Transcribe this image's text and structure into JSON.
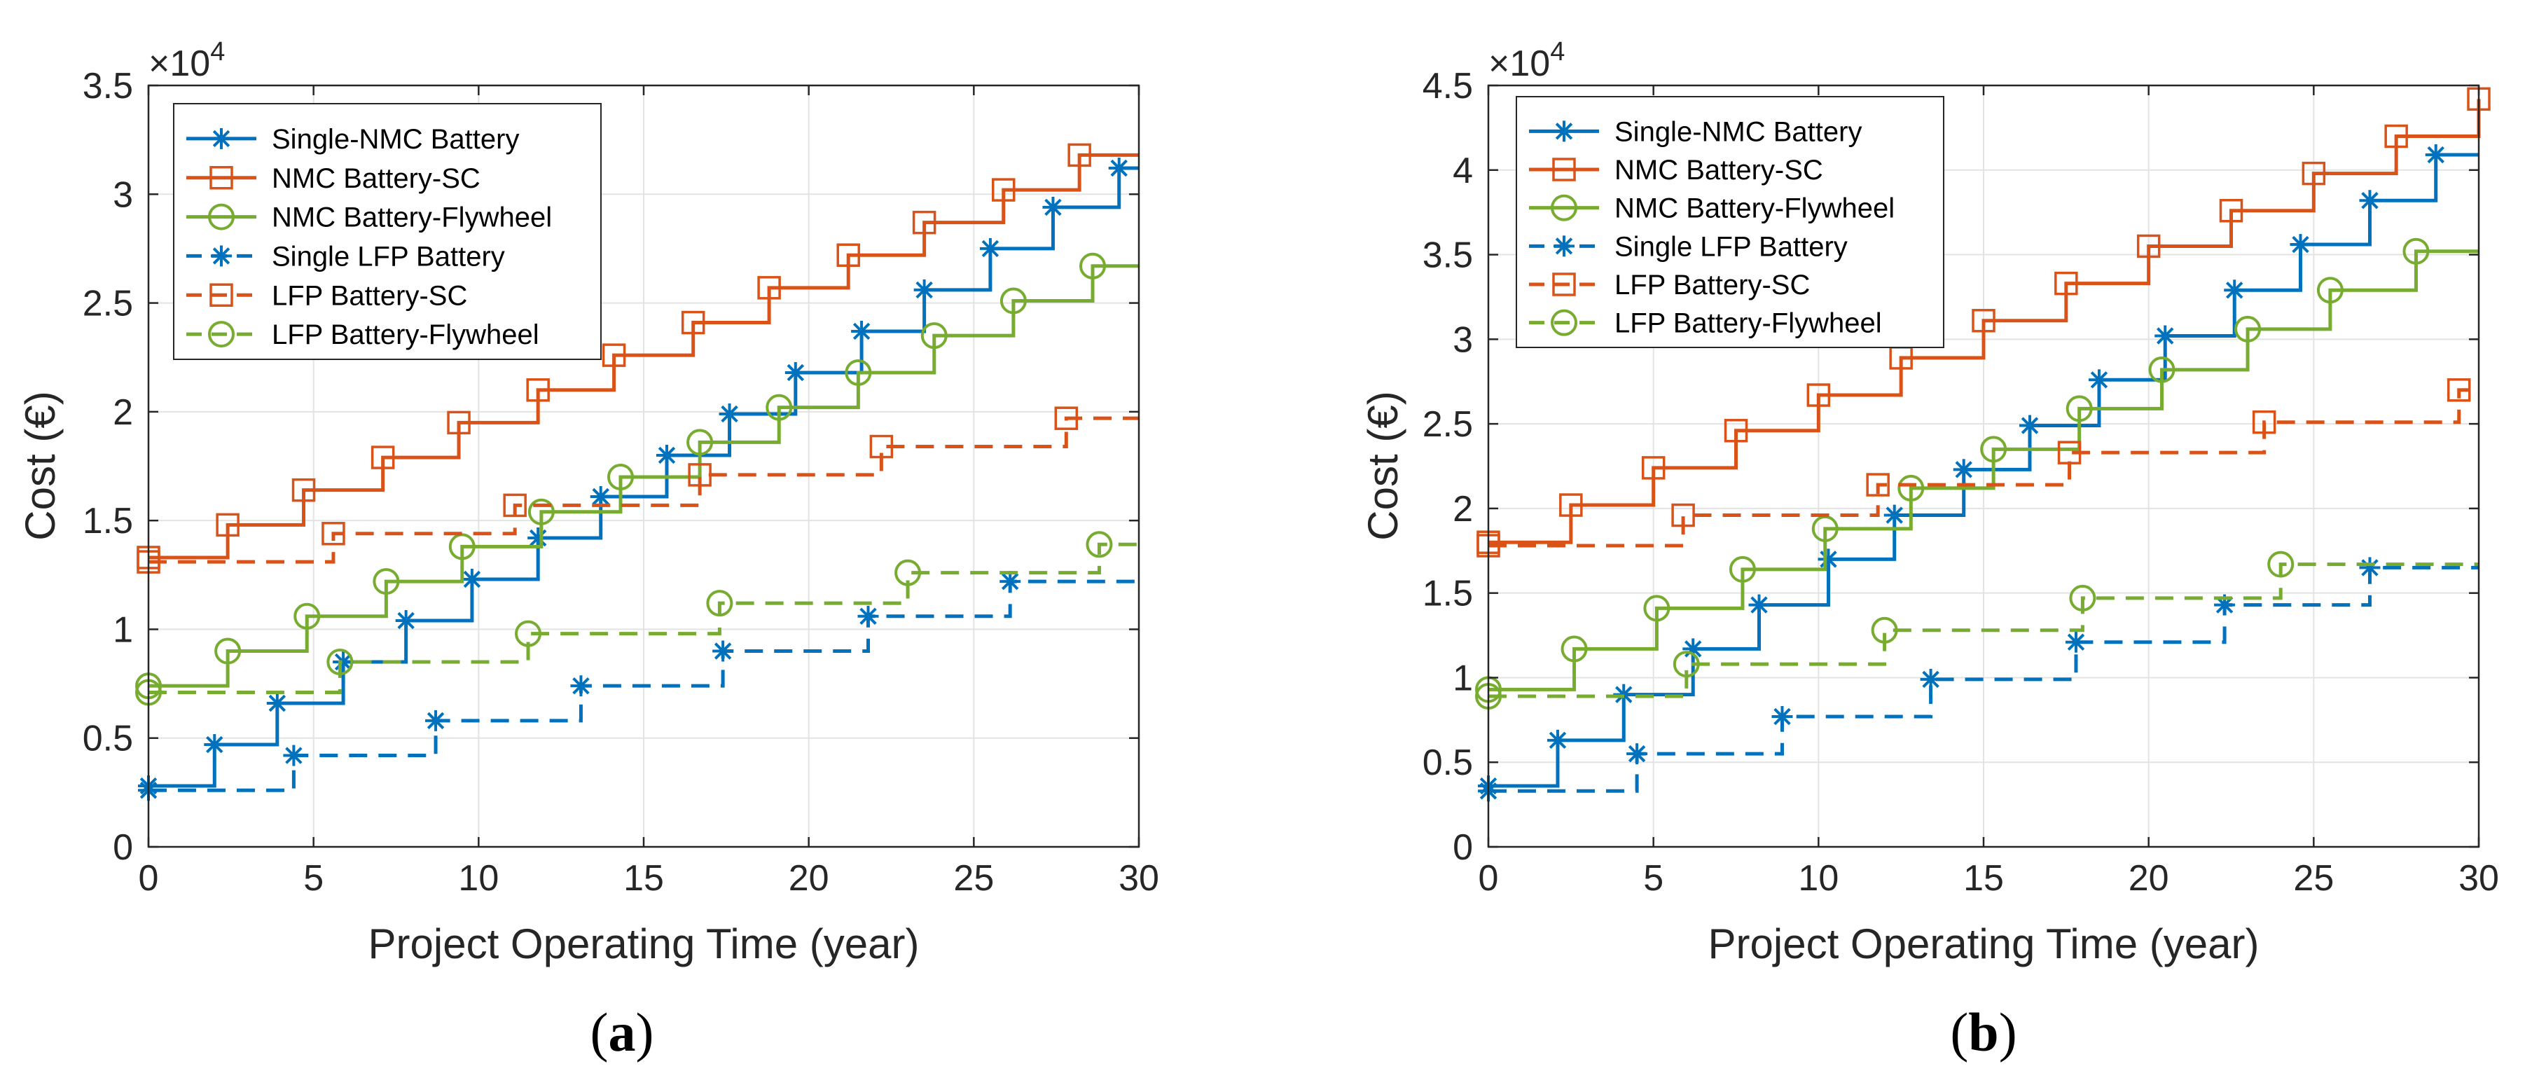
{
  "colors": {
    "nmc": "#0072BD",
    "sc": "#D95319",
    "fly": "#77AC30"
  },
  "series_style": [
    {
      "color": "#0072BD",
      "marker": "asterisk",
      "dash": "solid"
    },
    {
      "color": "#D95319",
      "marker": "square",
      "dash": "solid"
    },
    {
      "color": "#77AC30",
      "marker": "circle",
      "dash": "solid"
    },
    {
      "color": "#0072BD",
      "marker": "asterisk",
      "dash": "dashed"
    },
    {
      "color": "#D95319",
      "marker": "square",
      "dash": "dashed"
    },
    {
      "color": "#77AC30",
      "marker": "circle",
      "dash": "dashed"
    }
  ],
  "chart_data": [
    {
      "type": "line",
      "panel": "a",
      "caption": "a",
      "title": "",
      "xlabel": "Project Operating Time (year)",
      "ylabel": "Cost (€)",
      "multiplier_label": "×10",
      "multiplier_exp": "4",
      "xlim": [
        0,
        30
      ],
      "ylim": [
        0,
        3.5
      ],
      "xticks": [
        "0",
        "5",
        "10",
        "15",
        "20",
        "25",
        "30"
      ],
      "yticks": [
        "0",
        "0.5",
        "1",
        "1.5",
        "2",
        "2.5",
        "3",
        "3.5"
      ],
      "xtick_values": [
        0,
        5,
        10,
        15,
        20,
        25,
        30
      ],
      "ytick_values": [
        0,
        0.5,
        1,
        1.5,
        2,
        2.5,
        3,
        3.5
      ],
      "grid": true,
      "legend_position": "top-left",
      "series": [
        {
          "name": "Single-NMC Battery",
          "x": [
            0,
            2,
            3.9,
            5.9,
            7.8,
            9.8,
            11.8,
            13.7,
            15.7,
            17.6,
            19.6,
            21.6,
            23.5,
            25.5,
            27.4,
            29.4
          ],
          "y": [
            0.28,
            0.47,
            0.66,
            0.85,
            1.04,
            1.23,
            1.42,
            1.61,
            1.8,
            1.99,
            2.18,
            2.37,
            2.56,
            2.75,
            2.94,
            3.12
          ]
        },
        {
          "name": "NMC Battery-SC",
          "x": [
            0,
            2.4,
            4.7,
            7.1,
            9.4,
            11.8,
            14.1,
            16.5,
            18.8,
            21.2,
            23.5,
            25.9,
            28.2
          ],
          "y": [
            1.33,
            1.48,
            1.64,
            1.79,
            1.95,
            2.1,
            2.26,
            2.41,
            2.57,
            2.72,
            2.87,
            3.02,
            3.18
          ]
        },
        {
          "name": "NMC Battery-Flywheel",
          "x": [
            0,
            2.4,
            4.8,
            7.2,
            9.5,
            11.9,
            14.3,
            16.7,
            19.1,
            21.5,
            23.8,
            26.2,
            28.6
          ],
          "y": [
            0.74,
            0.9,
            1.06,
            1.22,
            1.38,
            1.54,
            1.7,
            1.86,
            2.02,
            2.18,
            2.35,
            2.51,
            2.67
          ]
        },
        {
          "name": "Single LFP Battery",
          "x": [
            0,
            4.4,
            8.7,
            13.1,
            17.4,
            21.8,
            26.1
          ],
          "y": [
            0.26,
            0.42,
            0.58,
            0.74,
            0.9,
            1.06,
            1.22
          ]
        },
        {
          "name": "LFP Battery-SC",
          "x": [
            0,
            5.6,
            11.1,
            16.7,
            22.2,
            27.8
          ],
          "y": [
            1.31,
            1.44,
            1.57,
            1.71,
            1.84,
            1.97
          ]
        },
        {
          "name": "LFP Battery-Flywheel",
          "x": [
            0,
            5.8,
            11.5,
            17.3,
            23,
            28.8
          ],
          "y": [
            0.71,
            0.85,
            0.98,
            1.12,
            1.26,
            1.39
          ]
        }
      ]
    },
    {
      "type": "line",
      "panel": "b",
      "caption": "b",
      "title": "",
      "xlabel": "Project Operating Time (year)",
      "ylabel": "Cost (€)",
      "multiplier_label": "×10",
      "multiplier_exp": "4",
      "xlim": [
        0,
        30
      ],
      "ylim": [
        0,
        4.5
      ],
      "xticks": [
        "0",
        "5",
        "10",
        "15",
        "20",
        "25",
        "30"
      ],
      "yticks": [
        "0",
        "0.5",
        "1",
        "1.5",
        "2",
        "2.5",
        "3",
        "3.5",
        "4",
        "4.5"
      ],
      "xtick_values": [
        0,
        5,
        10,
        15,
        20,
        25,
        30
      ],
      "ytick_values": [
        0,
        0.5,
        1,
        1.5,
        2,
        2.5,
        3,
        3.5,
        4,
        4.5
      ],
      "grid": true,
      "legend_position": "top-left",
      "series": [
        {
          "name": "Single-NMC Battery",
          "x": [
            0,
            2.1,
            4.1,
            6.2,
            8.2,
            10.3,
            12.3,
            14.4,
            16.4,
            18.5,
            20.5,
            22.6,
            24.6,
            26.7,
            28.7
          ],
          "y": [
            0.36,
            0.63,
            0.9,
            1.17,
            1.43,
            1.7,
            1.96,
            2.23,
            2.49,
            2.76,
            3.02,
            3.29,
            3.56,
            3.82,
            4.09
          ]
        },
        {
          "name": "NMC Battery-SC",
          "x": [
            0,
            2.5,
            5,
            7.5,
            10,
            12.5,
            15,
            17.5,
            20,
            22.5,
            25,
            27.5,
            30
          ],
          "y": [
            1.8,
            2.02,
            2.24,
            2.46,
            2.67,
            2.89,
            3.11,
            3.33,
            3.55,
            3.76,
            3.98,
            4.2,
            4.42
          ]
        },
        {
          "name": "NMC Battery-Flywheel",
          "x": [
            0,
            2.6,
            5.1,
            7.7,
            10.2,
            12.8,
            15.3,
            17.9,
            20.4,
            23,
            25.5,
            28.1
          ],
          "y": [
            0.93,
            1.17,
            1.41,
            1.64,
            1.88,
            2.12,
            2.35,
            2.59,
            2.82,
            3.06,
            3.29,
            3.52
          ]
        },
        {
          "name": "Single LFP Battery",
          "x": [
            0,
            4.5,
            8.9,
            13.4,
            17.8,
            22.3,
            26.7
          ],
          "y": [
            0.33,
            0.55,
            0.77,
            0.99,
            1.21,
            1.43,
            1.65
          ]
        },
        {
          "name": "LFP Battery-SC",
          "x": [
            0,
            5.9,
            11.8,
            17.6,
            23.5,
            29.4
          ],
          "y": [
            1.78,
            1.96,
            2.14,
            2.33,
            2.51,
            2.7
          ]
        },
        {
          "name": "LFP Battery-Flywheel",
          "x": [
            0,
            6,
            12,
            18,
            24
          ],
          "y": [
            0.89,
            1.08,
            1.28,
            1.47,
            1.67
          ]
        }
      ]
    }
  ]
}
